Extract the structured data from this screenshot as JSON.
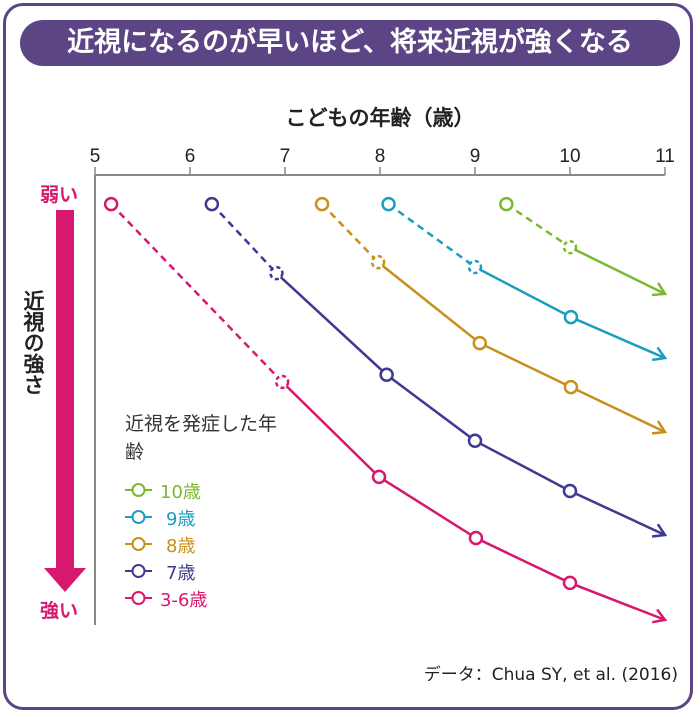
{
  "title": "近視になるのが早いほど、将来近視が強くなる",
  "credit": "データ：Chua SY, et al. (2016)",
  "chart_data": {
    "type": "line",
    "title": "近視になるのが早いほど、将来近視が強くなる",
    "xlabel": "こどもの年齢（歳）",
    "ylabel": "近視の強さ",
    "y_top_label": "弱い",
    "y_bottom_label": "強い",
    "xlim": [
      5,
      11
    ],
    "xticks": [
      "5",
      "6",
      "7",
      "8",
      "9",
      "10",
      "11"
    ],
    "ylim": [
      0,
      100
    ],
    "y_direction": "downward = stronger myopia",
    "grid": false,
    "legend_title": "近視を発症した年齢",
    "legend_placement": "bottom-left",
    "series": [
      {
        "name": "10歳",
        "color": "#7ab92f",
        "dashed": [
          [
            9.33,
            3.2
          ],
          [
            10.0,
            13.0
          ]
        ],
        "solid": [
          [
            10.0,
            13.0
          ],
          [
            11.0,
            23.6
          ]
        ]
      },
      {
        "name": "9歳",
        "color": "#1a9ec0",
        "dashed": [
          [
            8.09,
            3.2
          ],
          [
            9.0,
            17.5
          ]
        ],
        "solid": [
          [
            9.0,
            17.5
          ],
          [
            10.01,
            28.9
          ],
          [
            11.0,
            38.2
          ]
        ]
      },
      {
        "name": "8歳",
        "color": "#c8901a",
        "dashed": [
          [
            7.39,
            3.2
          ],
          [
            7.98,
            16.4
          ]
        ],
        "solid": [
          [
            7.98,
            16.4
          ],
          [
            9.05,
            34.8
          ],
          [
            10.01,
            44.8
          ],
          [
            11.0,
            55.0
          ]
        ]
      },
      {
        "name": "7歳",
        "color": "#3e3a92",
        "dashed": [
          [
            6.23,
            3.2
          ],
          [
            6.91,
            18.9
          ]
        ],
        "solid": [
          [
            6.91,
            18.9
          ],
          [
            8.07,
            42.0
          ],
          [
            9.0,
            57.0
          ],
          [
            10.0,
            68.4
          ],
          [
            11.0,
            78.4
          ]
        ]
      },
      {
        "name": "3-6歳",
        "color": "#d6186e",
        "dashed": [
          [
            5.17,
            3.2
          ],
          [
            6.97,
            43.6
          ]
        ],
        "solid": [
          [
            6.97,
            43.6
          ],
          [
            7.99,
            65.2
          ],
          [
            9.01,
            79.1
          ],
          [
            10.0,
            89.3
          ],
          [
            11.0,
            97.7
          ]
        ]
      }
    ]
  }
}
